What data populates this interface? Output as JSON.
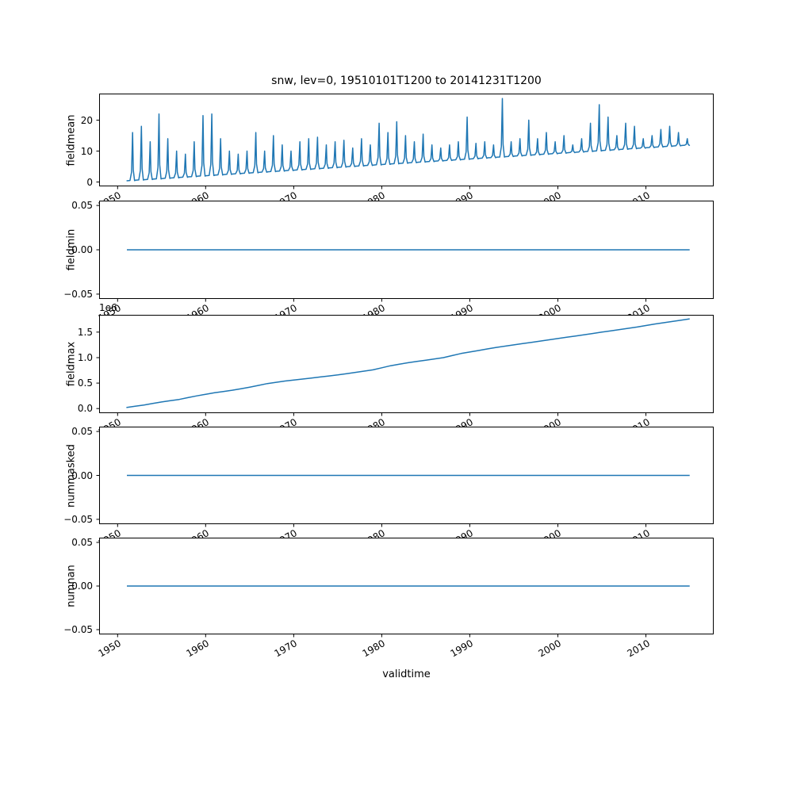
{
  "figure": {
    "title": "snw, lev=0, 19510101T1200 to 20141231T1200",
    "xlabel": "validtime",
    "line_color": "#1f77b4",
    "xlim": [
      1947.9,
      2017.7
    ],
    "x_tick_values": [
      1950,
      1960,
      1970,
      1980,
      1990,
      2000,
      2010
    ],
    "x_tick_labels": [
      "1950",
      "1960",
      "1970",
      "1980",
      "1990",
      "2000",
      "2010"
    ]
  },
  "chart_data": [
    {
      "id": "fieldmean",
      "type": "line",
      "ylabel": "fieldmean",
      "ylim": [
        -1.4,
        28.6
      ],
      "yticks": [
        {
          "v": 0,
          "label": "0"
        },
        {
          "v": 10,
          "label": "10"
        },
        {
          "v": 20,
          "label": "20"
        }
      ],
      "series_kind": "seasonal_spikes",
      "years_start": 1951,
      "years_end": 2014,
      "baseline_start": 0.4,
      "baseline_end": 11.8,
      "peaks": [
        16,
        18,
        13,
        22,
        14,
        10,
        9,
        13,
        21.5,
        22,
        14,
        10,
        9,
        10,
        16,
        10,
        15,
        12,
        10,
        13,
        14,
        14.5,
        12,
        13,
        13.5,
        11,
        14,
        12,
        19,
        16,
        19.5,
        15,
        13,
        15.5,
        12,
        11,
        12,
        13,
        21,
        12.5,
        13,
        12,
        27,
        13,
        14,
        20,
        14,
        16,
        13,
        15,
        12,
        14,
        19,
        25,
        21,
        15,
        19,
        18,
        14,
        15,
        17,
        18,
        16,
        14
      ]
    },
    {
      "id": "fieldmin",
      "type": "line",
      "ylabel": "fieldmin",
      "ylim": [
        -0.0555,
        0.0555
      ],
      "yticks": [
        {
          "v": -0.05,
          "label": "−0.05"
        },
        {
          "v": 0.0,
          "label": "0.00"
        },
        {
          "v": 0.05,
          "label": "0.05"
        }
      ],
      "points": [
        [
          1951.05,
          0
        ],
        [
          2014.97,
          0
        ]
      ]
    },
    {
      "id": "fieldmax",
      "type": "line",
      "ylabel": "fieldmax",
      "offset_label": "1e6",
      "ylim": [
        -0.09,
        1.84
      ],
      "yticks": [
        {
          "v": 0.0,
          "label": "0.0"
        },
        {
          "v": 0.5,
          "label": "0.5"
        },
        {
          "v": 1.0,
          "label": "1.0"
        },
        {
          "v": 1.5,
          "label": "1.5"
        }
      ],
      "points": [
        [
          1951,
          0.02
        ],
        [
          1952,
          0.045
        ],
        [
          1953,
          0.07
        ],
        [
          1954,
          0.1
        ],
        [
          1955,
          0.13
        ],
        [
          1956,
          0.155
        ],
        [
          1957,
          0.18
        ],
        [
          1958,
          0.215
        ],
        [
          1959,
          0.25
        ],
        [
          1960,
          0.28
        ],
        [
          1961,
          0.31
        ],
        [
          1962,
          0.335
        ],
        [
          1963,
          0.36
        ],
        [
          1964,
          0.39
        ],
        [
          1965,
          0.42
        ],
        [
          1966,
          0.455
        ],
        [
          1967,
          0.49
        ],
        [
          1968,
          0.515
        ],
        [
          1969,
          0.54
        ],
        [
          1970,
          0.56
        ],
        [
          1971,
          0.58
        ],
        [
          1972,
          0.6
        ],
        [
          1973,
          0.62
        ],
        [
          1974,
          0.64
        ],
        [
          1975,
          0.66
        ],
        [
          1976,
          0.685
        ],
        [
          1977,
          0.71
        ],
        [
          1978,
          0.735
        ],
        [
          1979,
          0.76
        ],
        [
          1980,
          0.8
        ],
        [
          1981,
          0.84
        ],
        [
          1982,
          0.87
        ],
        [
          1983,
          0.9
        ],
        [
          1984,
          0.925
        ],
        [
          1985,
          0.95
        ],
        [
          1986,
          0.975
        ],
        [
          1987,
          1.0
        ],
        [
          1988,
          1.04
        ],
        [
          1989,
          1.08
        ],
        [
          1990,
          1.11
        ],
        [
          1991,
          1.14
        ],
        [
          1992,
          1.17
        ],
        [
          1993,
          1.2
        ],
        [
          1994,
          1.225
        ],
        [
          1995,
          1.25
        ],
        [
          1996,
          1.275
        ],
        [
          1997,
          1.3
        ],
        [
          1998,
          1.325
        ],
        [
          1999,
          1.35
        ],
        [
          2000,
          1.375
        ],
        [
          2001,
          1.4
        ],
        [
          2002,
          1.425
        ],
        [
          2003,
          1.45
        ],
        [
          2004,
          1.475
        ],
        [
          2005,
          1.5
        ],
        [
          2006,
          1.525
        ],
        [
          2007,
          1.55
        ],
        [
          2008,
          1.575
        ],
        [
          2009,
          1.6
        ],
        [
          2010,
          1.63
        ],
        [
          2011,
          1.66
        ],
        [
          2012,
          1.685
        ],
        [
          2013,
          1.71
        ],
        [
          2014,
          1.735
        ],
        [
          2014.97,
          1.76
        ]
      ]
    },
    {
      "id": "nummasked",
      "type": "line",
      "ylabel": "nummasked",
      "ylim": [
        -0.0555,
        0.0555
      ],
      "yticks": [
        {
          "v": -0.05,
          "label": "−0.05"
        },
        {
          "v": 0.0,
          "label": "0.00"
        },
        {
          "v": 0.05,
          "label": "0.05"
        }
      ],
      "points": [
        [
          1951.05,
          0
        ],
        [
          2014.97,
          0
        ]
      ]
    },
    {
      "id": "numnan",
      "type": "line",
      "ylabel": "numnan",
      "ylim": [
        -0.0555,
        0.0555
      ],
      "yticks": [
        {
          "v": -0.05,
          "label": "−0.05"
        },
        {
          "v": 0.0,
          "label": "0.00"
        },
        {
          "v": 0.05,
          "label": "0.05"
        }
      ],
      "points": [
        [
          1951.05,
          0
        ],
        [
          2014.97,
          0
        ]
      ]
    }
  ]
}
